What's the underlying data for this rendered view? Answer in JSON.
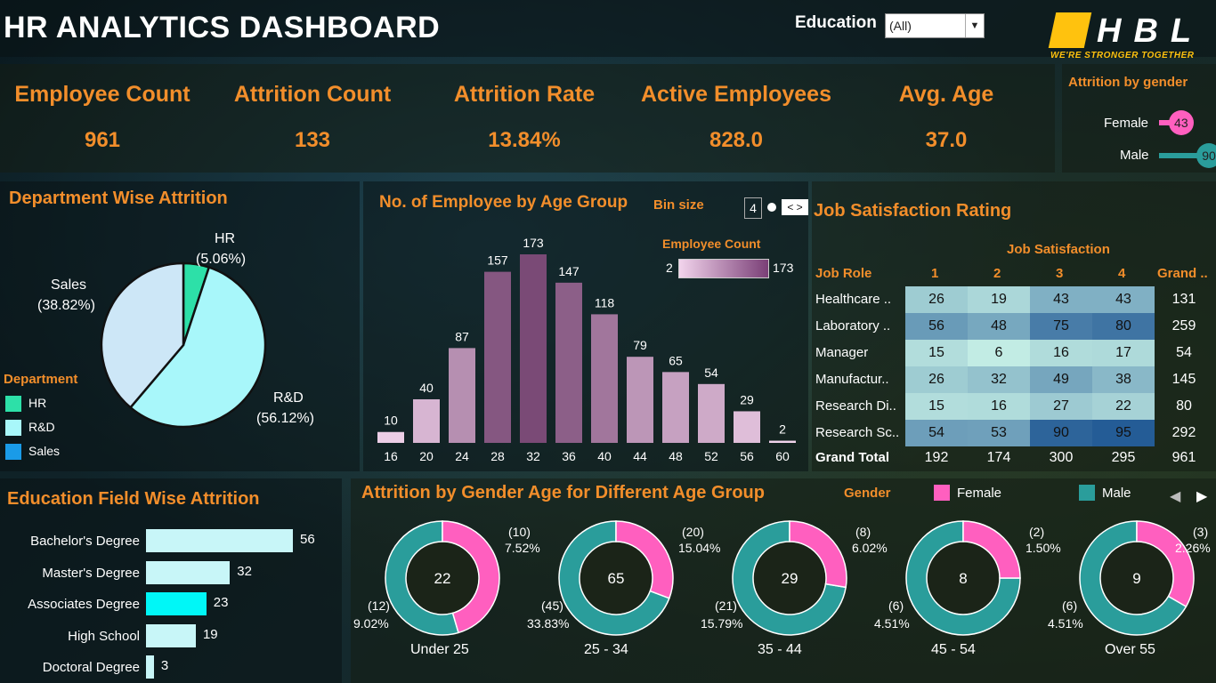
{
  "header": {
    "title": "HR ANALYTICS DASHBOARD",
    "filter_label": "Education",
    "filter_value": "(All)",
    "logo_text": "HBL",
    "logo_tagline": "WE'RE STRONGER TOGETHER"
  },
  "kpis": [
    {
      "title": "Employee Count",
      "value": "961"
    },
    {
      "title": "Attrition Count",
      "value": "133"
    },
    {
      "title": "Attrition Rate",
      "value": "13.84%"
    },
    {
      "title": "Active Employees",
      "value": "828.0"
    },
    {
      "title": "Avg. Age",
      "value": "37.0"
    }
  ],
  "gender_panel": {
    "title": "Attrition by gender",
    "rows": [
      {
        "label": "Female",
        "value": "43"
      },
      {
        "label": "Male",
        "value": "90"
      }
    ]
  },
  "department": {
    "title": "Department Wise Attrition",
    "legend_title": "Department",
    "legend": [
      "HR",
      "R&D",
      "Sales"
    ],
    "slices": [
      {
        "name": "HR",
        "pct": "(5.06%)"
      },
      {
        "name": "R&D",
        "pct": "(56.12%)"
      },
      {
        "name": "Sales",
        "pct": "(38.82%)"
      }
    ]
  },
  "age_group": {
    "title": "No. of Employee by Age Group",
    "bin_label": "Bin size",
    "bin_value": "4",
    "legend_title": "Employee Count",
    "legend_min": "2",
    "legend_max": "173"
  },
  "job_sat": {
    "title": "Job Satisfaction Rating",
    "col_header": "Job Satisfaction",
    "role_header": "Job Role",
    "cols": [
      "1",
      "2",
      "3",
      "4",
      "Grand .."
    ],
    "rows": [
      {
        "role": "Healthcare ..",
        "vals": [
          "26",
          "19",
          "43",
          "43"
        ],
        "total": "131"
      },
      {
        "role": "Laboratory ..",
        "vals": [
          "56",
          "48",
          "75",
          "80"
        ],
        "total": "259"
      },
      {
        "role": "Manager",
        "vals": [
          "15",
          "6",
          "16",
          "17"
        ],
        "total": "54"
      },
      {
        "role": "Manufactur..",
        "vals": [
          "26",
          "32",
          "49",
          "38"
        ],
        "total": "145"
      },
      {
        "role": "Research Di..",
        "vals": [
          "15",
          "16",
          "27",
          "22"
        ],
        "total": "80"
      },
      {
        "role": "Research Sc..",
        "vals": [
          "54",
          "53",
          "90",
          "95"
        ],
        "total": "292"
      }
    ],
    "grand_label": "Grand Total",
    "grand": [
      "192",
      "174",
      "300",
      "295",
      "961"
    ]
  },
  "education": {
    "title": "Education Field Wise Attrition",
    "rows": [
      {
        "label": "Bachelor's Degree",
        "value": "56"
      },
      {
        "label": "Master's Degree",
        "value": "32"
      },
      {
        "label": "Associates Degree",
        "value": "23"
      },
      {
        "label": "High School",
        "value": "19"
      },
      {
        "label": "Doctoral Degree",
        "value": "3"
      }
    ]
  },
  "gender_age": {
    "title": "Attrition by Gender Age for Different Age Group",
    "legend_title": "Gender",
    "legend": [
      "Female",
      "Male"
    ],
    "donuts": [
      {
        "group": "Under 25",
        "total": "22",
        "female": "(10)",
        "female_pct": "7.52%",
        "male": "(12)",
        "male_pct": "9.02%"
      },
      {
        "group": "25 - 34",
        "total": "65",
        "female": "(20)",
        "female_pct": "15.04%",
        "male": "(45)",
        "male_pct": "33.83%"
      },
      {
        "group": "35 - 44",
        "total": "29",
        "female": "(8)",
        "female_pct": "6.02%",
        "male": "(21)",
        "male_pct": "15.79%"
      },
      {
        "group": "45 - 54",
        "total": "8",
        "female": "(2)",
        "female_pct": "1.50%",
        "male": "(6)",
        "male_pct": "4.51%"
      },
      {
        "group": "Over 55",
        "total": "9",
        "female": "(3)",
        "female_pct": "2.26%",
        "male": "(6)",
        "male_pct": "4.51%"
      }
    ]
  },
  "colors": {
    "accent": "#f28e2b",
    "female": "#ff5fbf",
    "male": "#2a9d9b",
    "hr": "#2de0a8",
    "rnd": "#a8f7fa",
    "sales": "#1a9be8",
    "edu_bar": "#c8f6f8",
    "edu_highlight": "#00f7f7"
  },
  "chart_data": [
    {
      "type": "pie",
      "title": "Department Wise Attrition",
      "categories": [
        "HR",
        "R&D",
        "Sales"
      ],
      "values": [
        5.06,
        56.12,
        38.82
      ]
    },
    {
      "type": "bar",
      "title": "No. of Employee by Age Group",
      "categories": [
        "16",
        "20",
        "24",
        "28",
        "32",
        "36",
        "40",
        "44",
        "48",
        "52",
        "56",
        "60"
      ],
      "values": [
        10,
        40,
        87,
        157,
        173,
        147,
        118,
        79,
        65,
        54,
        29,
        2
      ]
    },
    {
      "type": "heatmap",
      "title": "Job Satisfaction Rating",
      "x": [
        "1",
        "2",
        "3",
        "4"
      ],
      "y": [
        "Healthcare ..",
        "Laboratory ..",
        "Manager",
        "Manufactur..",
        "Research Di..",
        "Research Sc.."
      ],
      "values": [
        [
          26,
          19,
          43,
          43
        ],
        [
          56,
          48,
          75,
          80
        ],
        [
          15,
          6,
          16,
          17
        ],
        [
          26,
          32,
          49,
          38
        ],
        [
          15,
          16,
          27,
          22
        ],
        [
          54,
          53,
          90,
          95
        ]
      ]
    },
    {
      "type": "bar",
      "title": "Education Field Wise Attrition",
      "categories": [
        "Bachelor's Degree",
        "Master's Degree",
        "Associates Degree",
        "High School",
        "Doctoral Degree"
      ],
      "values": [
        56,
        32,
        23,
        19,
        3
      ]
    },
    {
      "type": "pie",
      "title": "Attrition by Gender Age for Different Age Group",
      "categories": [
        "Under 25",
        "25 - 34",
        "35 - 44",
        "45 - 54",
        "Over 55"
      ],
      "series": [
        {
          "name": "Female",
          "values": [
            10,
            20,
            8,
            2,
            3
          ]
        },
        {
          "name": "Male",
          "values": [
            12,
            45,
            21,
            6,
            6
          ]
        }
      ]
    },
    {
      "type": "bar",
      "title": "Attrition by gender",
      "categories": [
        "Female",
        "Male"
      ],
      "values": [
        43,
        90
      ]
    }
  ]
}
